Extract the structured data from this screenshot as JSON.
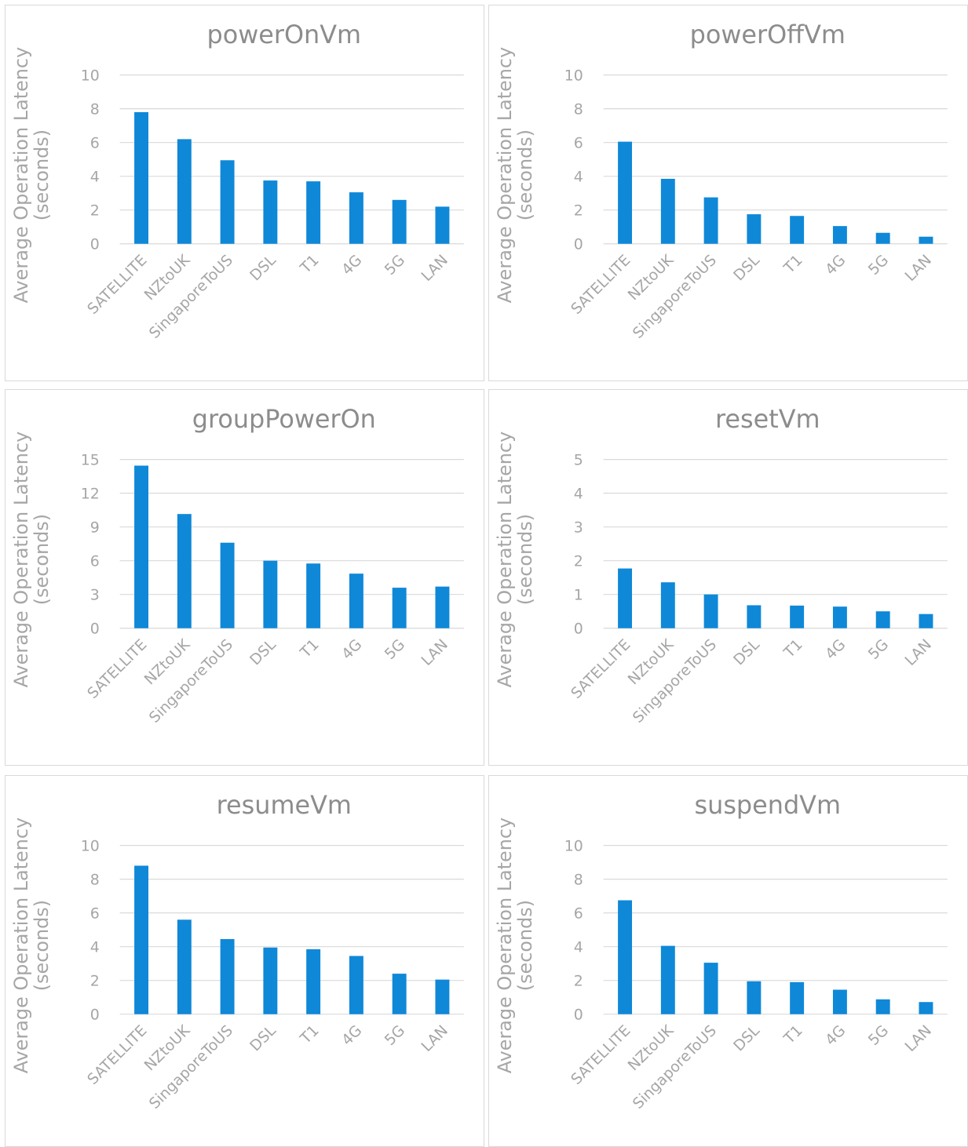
{
  "chart_data": [
    {
      "type": "bar",
      "title": "powerOnVm",
      "ylabel": "Average Operation Latency (seconds)",
      "ylabel_lines": [
        "Average Operation Latency",
        "(seconds)"
      ],
      "categories": [
        "SATELLITE",
        "NZtoUK",
        "SingaporeToUS",
        "DSL",
        "T1",
        "4G",
        "5G",
        "LAN"
      ],
      "values": [
        7.8,
        6.2,
        4.95,
        3.75,
        3.7,
        3.05,
        2.6,
        2.2
      ],
      "ylim": [
        0,
        10
      ],
      "yticks": [
        0,
        2,
        4,
        6,
        8,
        10
      ],
      "grid": true,
      "bar_color": "#0f88d8"
    },
    {
      "type": "bar",
      "title": "powerOffVm",
      "ylabel": "Average Operation Latency (seconds)",
      "ylabel_lines": [
        "Average Operation Latency",
        "(seconds)"
      ],
      "categories": [
        "SATELLITE",
        "NZtoUK",
        "SingaporeToUS",
        "DSL",
        "T1",
        "4G",
        "5G",
        "LAN"
      ],
      "values": [
        6.05,
        3.85,
        2.75,
        1.75,
        1.65,
        1.05,
        0.65,
        0.42
      ],
      "ylim": [
        0,
        10
      ],
      "yticks": [
        0,
        2,
        4,
        6,
        8,
        10
      ],
      "grid": true,
      "bar_color": "#0f88d8"
    },
    {
      "type": "bar",
      "title": "groupPowerOn",
      "ylabel": "Average Operation Latency (seconds)",
      "ylabel_lines": [
        "Average Operation Latency",
        "(seconds)"
      ],
      "categories": [
        "SATELLITE",
        "NZtoUK",
        "SingaporeToUS",
        "DSL",
        "T1",
        "4G",
        "5G",
        "LAN"
      ],
      "values": [
        14.45,
        10.15,
        7.6,
        6.0,
        5.75,
        4.85,
        3.6,
        3.7
      ],
      "ylim": [
        0,
        15
      ],
      "yticks": [
        0,
        3,
        6,
        9,
        12,
        15
      ],
      "grid": true,
      "bar_color": "#0f88d8"
    },
    {
      "type": "bar",
      "title": "resetVm",
      "ylabel": "Average Operation Latency (seconds)",
      "ylabel_lines": [
        "Average Operation Latency",
        "(seconds)"
      ],
      "categories": [
        "SATELLITE",
        "NZtoUK",
        "SingaporeToUS",
        "DSL",
        "T1",
        "4G",
        "5G",
        "LAN"
      ],
      "values": [
        1.77,
        1.36,
        1.0,
        0.68,
        0.67,
        0.64,
        0.5,
        0.42
      ],
      "ylim": [
        0,
        5
      ],
      "yticks": [
        0,
        1,
        2,
        3,
        4,
        5
      ],
      "grid": true,
      "bar_color": "#0f88d8"
    },
    {
      "type": "bar",
      "title": "resumeVm",
      "ylabel": "Average Operation Latency (seconds)",
      "ylabel_lines": [
        "Average Operation Latency",
        "(seconds)"
      ],
      "categories": [
        "SATELLITE",
        "NZtoUK",
        "SingaporeToUS",
        "DSL",
        "T1",
        "4G",
        "5G",
        "LAN"
      ],
      "values": [
        8.8,
        5.6,
        4.45,
        3.95,
        3.85,
        3.45,
        2.4,
        2.05
      ],
      "ylim": [
        0,
        10
      ],
      "yticks": [
        0,
        2,
        4,
        6,
        8,
        10
      ],
      "grid": true,
      "bar_color": "#0f88d8"
    },
    {
      "type": "bar",
      "title": "suspendVm",
      "ylabel": "Average Operation Latency (seconds)",
      "ylabel_lines": [
        "Average Operation Latency",
        "(seconds)"
      ],
      "categories": [
        "SATELLITE",
        "NZtoUK",
        "SingaporeToUS",
        "DSL",
        "T1",
        "4G",
        "5G",
        "LAN"
      ],
      "values": [
        6.75,
        4.05,
        3.05,
        1.95,
        1.9,
        1.45,
        0.88,
        0.72
      ],
      "ylim": [
        0,
        10
      ],
      "yticks": [
        0,
        2,
        4,
        6,
        8,
        10
      ],
      "grid": true,
      "bar_color": "#0f88d8"
    }
  ]
}
